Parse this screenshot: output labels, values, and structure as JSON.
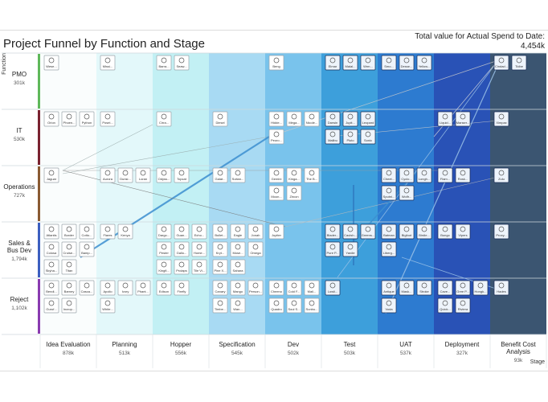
{
  "header": {
    "title": "Project Funnel by Function and Stage",
    "total_label": "Total value for Actual Spend to Date:",
    "total_value": "4,454k"
  },
  "axis_labels": {
    "function": "Function",
    "stage": "Stage"
  },
  "stages": [
    {
      "name": "Idea Evaluation",
      "value": "878k"
    },
    {
      "name": "Planning",
      "value": "513k"
    },
    {
      "name": "Hopper",
      "value": "556k"
    },
    {
      "name": "Specification",
      "value": "545k"
    },
    {
      "name": "Dev",
      "value": "502k"
    },
    {
      "name": "Test",
      "value": "503k"
    },
    {
      "name": "UAT",
      "value": "537k"
    },
    {
      "name": "Deployment",
      "value": "327k"
    },
    {
      "name": "Benefit Cost Analysis",
      "value": "93k"
    }
  ],
  "functions": [
    {
      "name": "PMO",
      "value": "301k",
      "cells": [
        [
          "Wese..."
        ],
        [
          "Missi..."
        ],
        [
          "Barra...",
          "Seaw..."
        ],
        [],
        [
          "Beng"
        ],
        [
          "Elmar",
          "Malal...",
          "Wrm..."
        ],
        [
          "Smo...",
          "Desse...",
          "Yellow..."
        ],
        [],
        [
          "Cindad...",
          "Tidbe"
        ]
      ]
    },
    {
      "name": "IT",
      "value": "530k",
      "cells": [
        [
          "Orion",
          "Phoen...",
          "Python"
        ],
        [
          "Posei..."
        ],
        [
          "Cirra..."
        ],
        [
          "Diesel"
        ],
        [
          "Hidde...",
          "Mega...",
          "Nicole...",
          "Peoro..."
        ],
        [
          "Darwin",
          "Jupit...",
          "Leopard",
          "Malibu",
          "Pluto",
          "Sonic"
        ],
        [],
        [
          "Liquid...",
          "Manser..."
        ],
        [
          "Ximpax"
        ]
      ]
    },
    {
      "name": "Operations",
      "value": "727k",
      "cells": [
        [
          "Jaguar"
        ],
        [
          "Aurora",
          "Dunsi...",
          "Loran"
        ],
        [
          "Odyss...",
          "Topcat"
        ],
        [
          "Galat...",
          "Sultan..."
        ],
        [
          "Gemini",
          "Kinga...",
          "The B...",
          "Moon...",
          "Zircon"
        ],
        [],
        [
          "Cheet...",
          "Cyclo...",
          "Longh...",
          "Sputni...",
          "Wolfr..."
        ],
        [
          "Flam...",
          "Rosk..."
        ],
        [
          "Zulu"
        ]
      ]
    },
    {
      "name": "Sales & Bus Dev",
      "value": "1,794k",
      "cells": [
        [
          "Atlantis",
          "Border",
          "Cotto...",
          "Colosa",
          "Cruise...",
          "Bamp...",
          "Skyha...",
          "Titan"
        ],
        [
          "Flares",
          "Kenya"
        ],
        [
          "Dargo...",
          "Guan...",
          "Echo...",
          "Pester",
          "Gallo...",
          "Home...",
          "Kingfi...",
          "Prolaps",
          "Tile Vi..."
        ],
        [
          "Bullet...",
          "Eagle",
          "Jonah",
          "Kryt...",
          "Mose...",
          "Omega",
          "Pine X...",
          "Sahara"
        ],
        [
          "Jupiter"
        ],
        [
          "Blader...",
          "Caulsh...",
          "Greens...",
          "Pure P...",
          "Yardie"
        ],
        [
          "Batman",
          "Bigfoot",
          "Birdie...",
          "Liberg..."
        ],
        [
          "Bungo",
          "Vipers"
        ],
        [
          "Proxy..."
        ]
      ]
    },
    {
      "name": "Reject",
      "value": "1,102k",
      "cells": [
        [
          "Bendi...",
          "Barney",
          "Casca...",
          "Guruf...",
          "Incrop..."
        ],
        [
          "Apollo",
          "Ivory",
          "Phant...",
          "White..."
        ],
        [
          "Edison",
          "Firefly"
        ],
        [
          "Canary",
          "Mango",
          "Person...",
          "Timbe...",
          "Wan..."
        ],
        [
          "Cheeno",
          "Cold F...",
          "Mail...",
          "Quadro",
          "Soul S...",
          "Sunbu..."
        ],
        [
          "Lowli..."
        ],
        [
          "Antique",
          "Mask...",
          "Stroke",
          "Voda"
        ],
        [
          "Cave...",
          "Gree P...",
          "Hongk...",
          "Quick...",
          "Riviera"
        ],
        [
          "Hades"
        ]
      ]
    }
  ]
}
